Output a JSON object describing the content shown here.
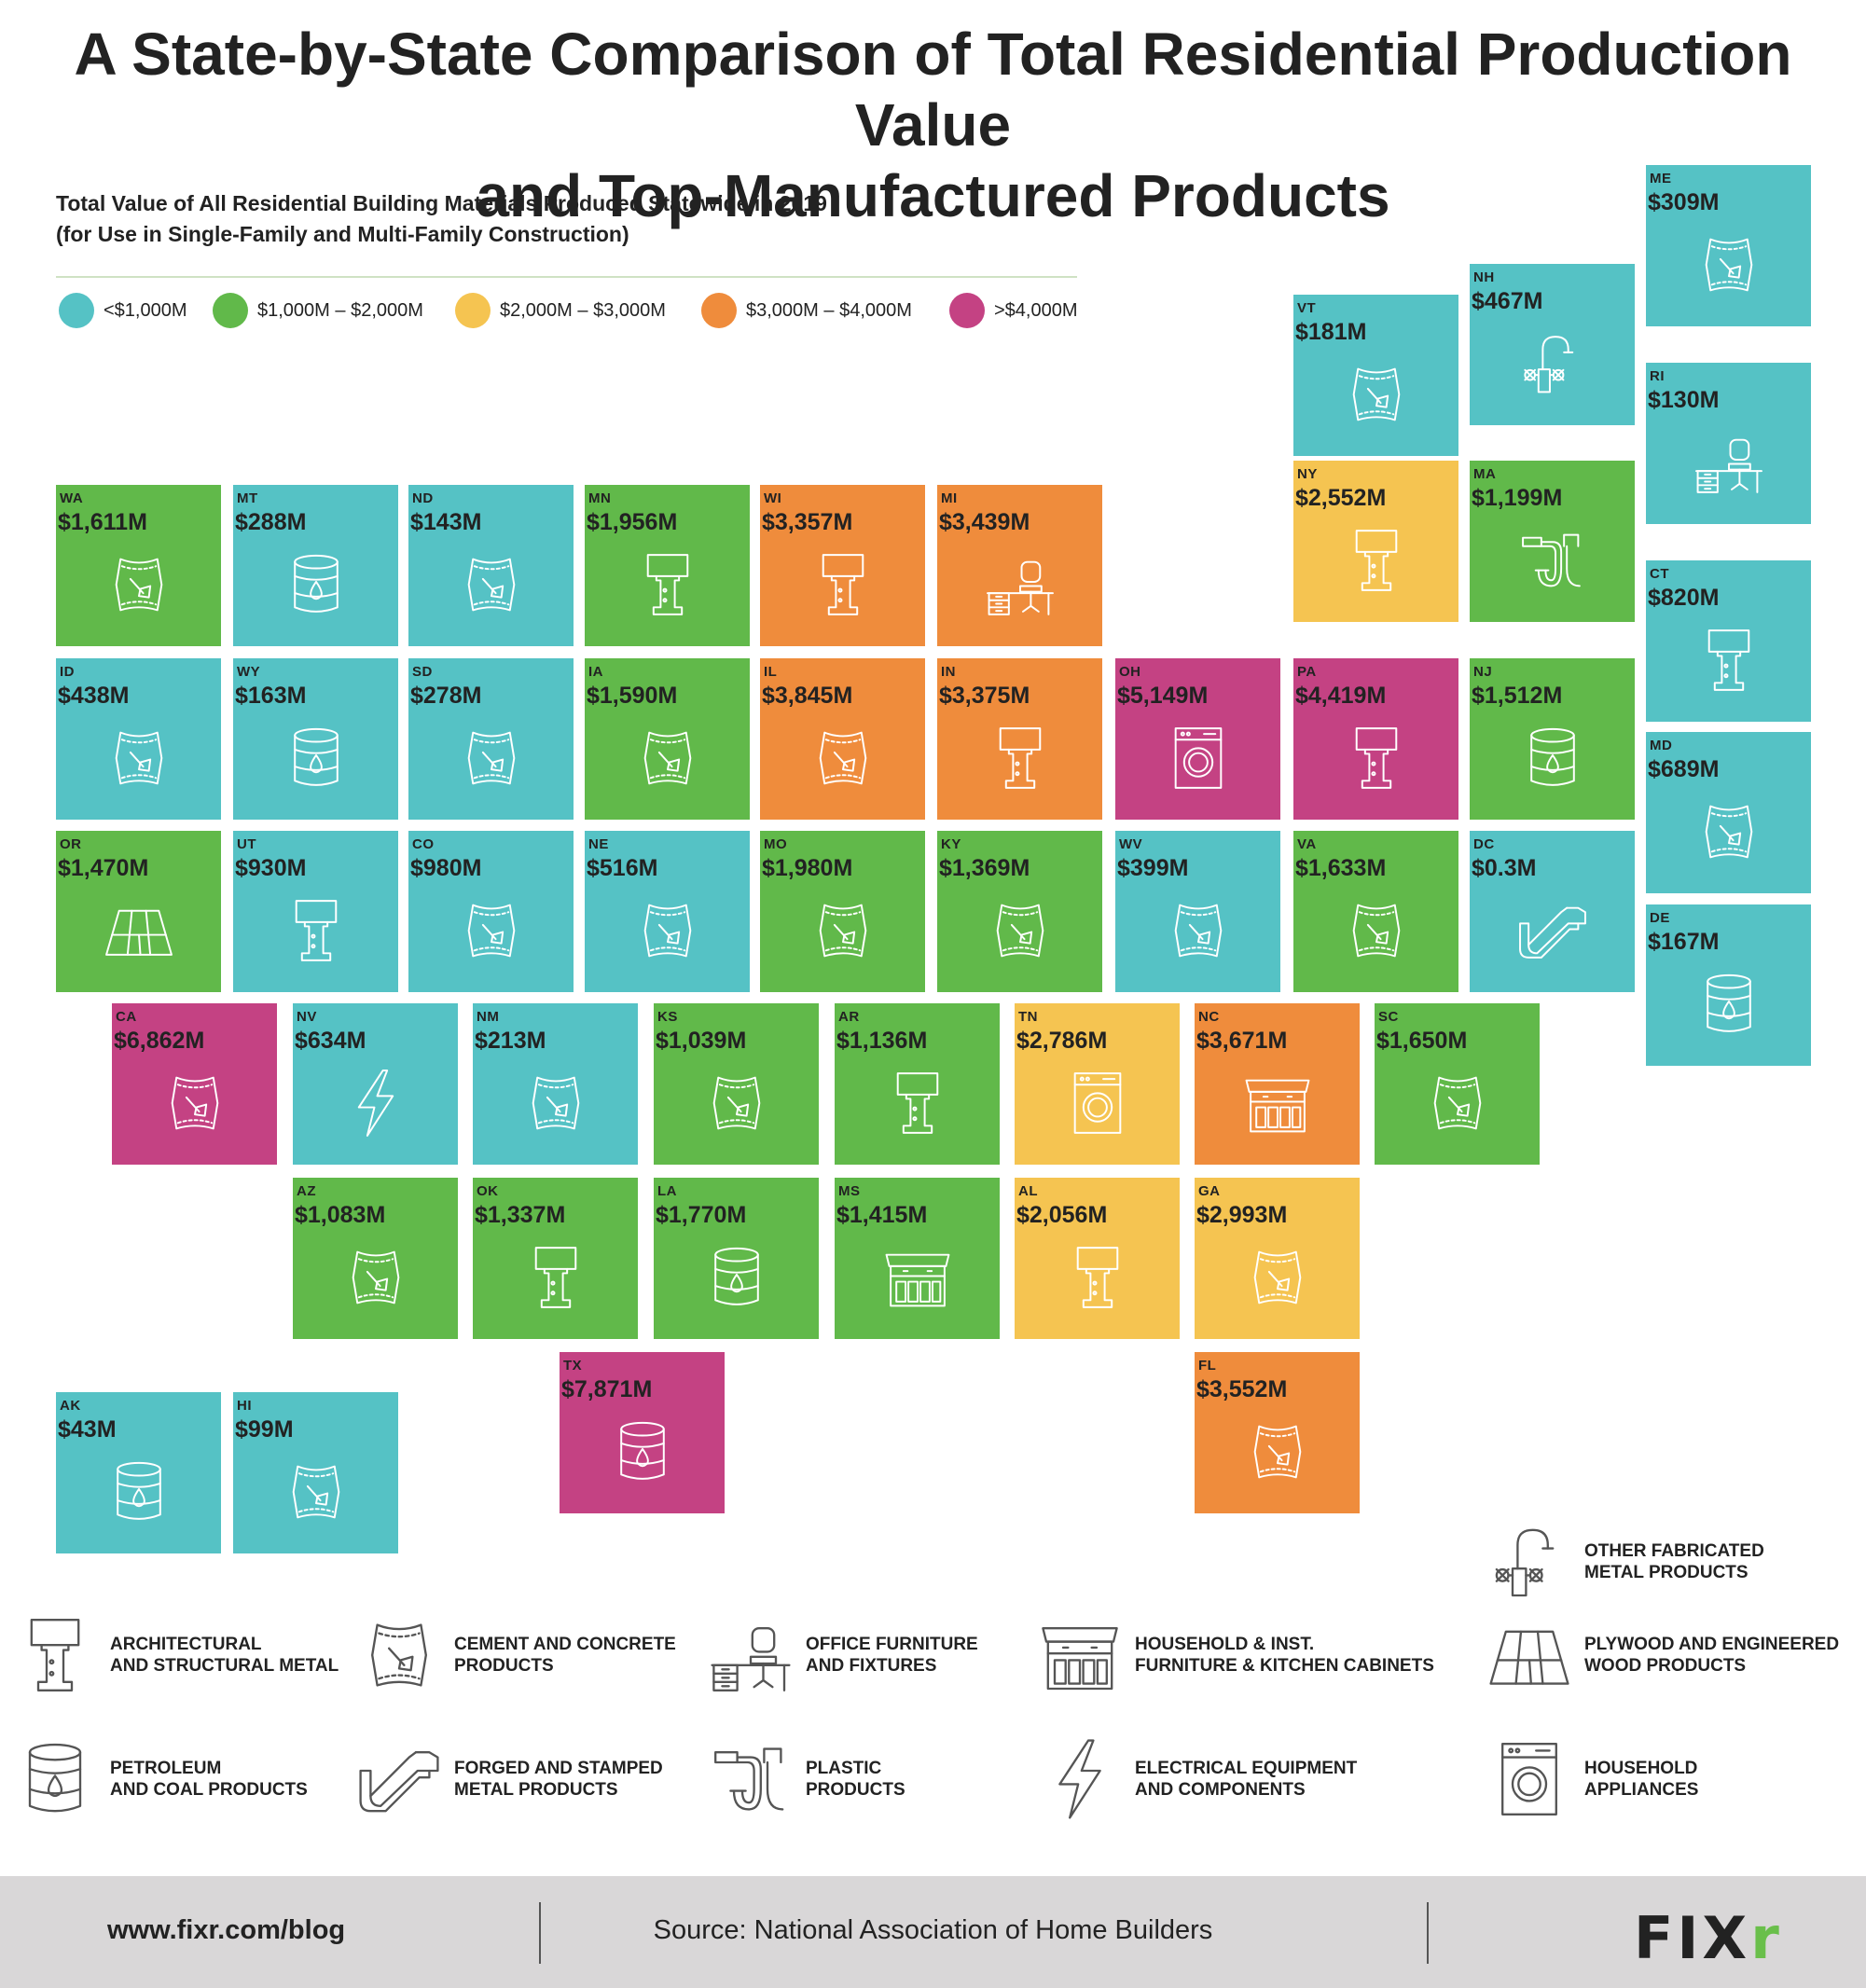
{
  "title": {
    "line1": "A State-by-State Comparison of Total Residential Production Value",
    "line2": "and Top-Manufactured Products"
  },
  "subtitle": {
    "line1": "Total Value of All Residential Building Materials Produced Statewide in 2019",
    "line2": "(for Use in Single-Family and Multi-Family Construction)"
  },
  "legend": [
    {
      "label": "<$1,000M",
      "color": "#55c2c5"
    },
    {
      "label": "$1,000M – $2,000M",
      "color": "#61b94a"
    },
    {
      "label": "$2,000M – $3,000M",
      "color": "#f5c451"
    },
    {
      "label": "$3,000M – $4,000M",
      "color": "#ef8c3c"
    },
    {
      "label": ">$4,000M",
      "color": "#c44283"
    }
  ],
  "states": [
    {
      "abbr": "ME",
      "value": "$309M",
      "value_m": 309,
      "icon": "cement-bag"
    },
    {
      "abbr": "VT",
      "value": "$181M",
      "value_m": 181,
      "icon": "cement-bag"
    },
    {
      "abbr": "NH",
      "value": "$467M",
      "value_m": 467,
      "icon": "faucet"
    },
    {
      "abbr": "RI",
      "value": "$130M",
      "value_m": 130,
      "icon": "office-desk"
    },
    {
      "abbr": "WA",
      "value": "$1,611M",
      "value_m": 1611,
      "icon": "cement-bag"
    },
    {
      "abbr": "MT",
      "value": "$288M",
      "value_m": 288,
      "icon": "oil-barrel"
    },
    {
      "abbr": "ND",
      "value": "$143M",
      "value_m": 143,
      "icon": "cement-bag"
    },
    {
      "abbr": "MN",
      "value": "$1,956M",
      "value_m": 1956,
      "icon": "i-beam"
    },
    {
      "abbr": "WI",
      "value": "$3,357M",
      "value_m": 3357,
      "icon": "i-beam"
    },
    {
      "abbr": "MI",
      "value": "$3,439M",
      "value_m": 3439,
      "icon": "office-desk"
    },
    {
      "abbr": "NY",
      "value": "$2,552M",
      "value_m": 2552,
      "icon": "i-beam"
    },
    {
      "abbr": "MA",
      "value": "$1,199M",
      "value_m": 1199,
      "icon": "pipe"
    },
    {
      "abbr": "CT",
      "value": "$820M",
      "value_m": 820,
      "icon": "i-beam"
    },
    {
      "abbr": "ID",
      "value": "$438M",
      "value_m": 438,
      "icon": "cement-bag"
    },
    {
      "abbr": "WY",
      "value": "$163M",
      "value_m": 163,
      "icon": "oil-barrel"
    },
    {
      "abbr": "SD",
      "value": "$278M",
      "value_m": 278,
      "icon": "cement-bag"
    },
    {
      "abbr": "IA",
      "value": "$1,590M",
      "value_m": 1590,
      "icon": "cement-bag"
    },
    {
      "abbr": "IL",
      "value": "$3,845M",
      "value_m": 3845,
      "icon": "cement-bag"
    },
    {
      "abbr": "IN",
      "value": "$3,375M",
      "value_m": 3375,
      "icon": "i-beam"
    },
    {
      "abbr": "OH",
      "value": "$5,149M",
      "value_m": 5149,
      "icon": "washer"
    },
    {
      "abbr": "PA",
      "value": "$4,419M",
      "value_m": 4419,
      "icon": "i-beam"
    },
    {
      "abbr": "NJ",
      "value": "$1,512M",
      "value_m": 1512,
      "icon": "oil-barrel"
    },
    {
      "abbr": "MD",
      "value": "$689M",
      "value_m": 689,
      "icon": "cement-bag"
    },
    {
      "abbr": "OR",
      "value": "$1,470M",
      "value_m": 1470,
      "icon": "plywood"
    },
    {
      "abbr": "UT",
      "value": "$930M",
      "value_m": 930,
      "icon": "i-beam"
    },
    {
      "abbr": "CO",
      "value": "$980M",
      "value_m": 980,
      "icon": "cement-bag"
    },
    {
      "abbr": "NE",
      "value": "$516M",
      "value_m": 516,
      "icon": "cement-bag"
    },
    {
      "abbr": "MO",
      "value": "$1,980M",
      "value_m": 1980,
      "icon": "cement-bag"
    },
    {
      "abbr": "KY",
      "value": "$1,369M",
      "value_m": 1369,
      "icon": "cement-bag"
    },
    {
      "abbr": "WV",
      "value": "$399M",
      "value_m": 399,
      "icon": "cement-bag"
    },
    {
      "abbr": "VA",
      "value": "$1,633M",
      "value_m": 1633,
      "icon": "cement-bag"
    },
    {
      "abbr": "DC",
      "value": "$0.3M",
      "value_m": 0.3,
      "icon": "channel"
    },
    {
      "abbr": "DE",
      "value": "$167M",
      "value_m": 167,
      "icon": "oil-barrel"
    },
    {
      "abbr": "CA",
      "value": "$6,862M",
      "value_m": 6862,
      "icon": "cement-bag"
    },
    {
      "abbr": "NV",
      "value": "$634M",
      "value_m": 634,
      "icon": "bolt"
    },
    {
      "abbr": "NM",
      "value": "$213M",
      "value_m": 213,
      "icon": "cement-bag"
    },
    {
      "abbr": "KS",
      "value": "$1,039M",
      "value_m": 1039,
      "icon": "cement-bag"
    },
    {
      "abbr": "AR",
      "value": "$1,136M",
      "value_m": 1136,
      "icon": "i-beam"
    },
    {
      "abbr": "TN",
      "value": "$2,786M",
      "value_m": 2786,
      "icon": "washer"
    },
    {
      "abbr": "NC",
      "value": "$3,671M",
      "value_m": 3671,
      "icon": "cabinet"
    },
    {
      "abbr": "SC",
      "value": "$1,650M",
      "value_m": 1650,
      "icon": "cement-bag"
    },
    {
      "abbr": "AZ",
      "value": "$1,083M",
      "value_m": 1083,
      "icon": "cement-bag"
    },
    {
      "abbr": "OK",
      "value": "$1,337M",
      "value_m": 1337,
      "icon": "i-beam"
    },
    {
      "abbr": "LA",
      "value": "$1,770M",
      "value_m": 1770,
      "icon": "oil-barrel"
    },
    {
      "abbr": "MS",
      "value": "$1,415M",
      "value_m": 1415,
      "icon": "cabinet"
    },
    {
      "abbr": "AL",
      "value": "$2,056M",
      "value_m": 2056,
      "icon": "i-beam"
    },
    {
      "abbr": "GA",
      "value": "$2,993M",
      "value_m": 2993,
      "icon": "cement-bag"
    },
    {
      "abbr": "TX",
      "value": "$7,871M",
      "value_m": 7871,
      "icon": "oil-barrel"
    },
    {
      "abbr": "FL",
      "value": "$3,552M",
      "value_m": 3552,
      "icon": "cement-bag"
    },
    {
      "abbr": "AK",
      "value": "$43M",
      "value_m": 43,
      "icon": "oil-barrel"
    },
    {
      "abbr": "HI",
      "value": "$99M",
      "value_m": 99,
      "icon": "cement-bag"
    }
  ],
  "key": [
    {
      "icon": "faucet",
      "line1": "OTHER FABRICATED",
      "line2": "METAL PRODUCTS"
    },
    {
      "icon": "i-beam",
      "line1": "ARCHITECTURAL",
      "line2": "AND STRUCTURAL METAL"
    },
    {
      "icon": "cement-bag",
      "line1": "CEMENT AND CONCRETE",
      "line2": "PRODUCTS"
    },
    {
      "icon": "office-desk",
      "line1": "OFFICE FURNITURE",
      "line2": "AND FIXTURES"
    },
    {
      "icon": "cabinet",
      "line1": "HOUSEHOLD & INST.",
      "line2": "FURNITURE & KITCHEN CABINETS"
    },
    {
      "icon": "plywood",
      "line1": "PLYWOOD AND ENGINEERED",
      "line2": "WOOD PRODUCTS"
    },
    {
      "icon": "oil-barrel",
      "line1": "PETROLEUM",
      "line2": "AND COAL PRODUCTS"
    },
    {
      "icon": "channel",
      "line1": "FORGED AND STAMPED",
      "line2": "METAL PRODUCTS"
    },
    {
      "icon": "pipe",
      "line1": "PLASTIC",
      "line2": "PRODUCTS"
    },
    {
      "icon": "bolt",
      "line1": "ELECTRICAL EQUIPMENT",
      "line2": "AND COMPONENTS"
    },
    {
      "icon": "washer",
      "line1": "HOUSEHOLD",
      "line2": "APPLIANCES"
    }
  ],
  "footer": {
    "url": "www.fixr.com/blog",
    "source": "Source: National Association of Home Builders",
    "logo_main": "FIX",
    "logo_accent": "r"
  },
  "colors": {
    "lt1000": "#55c2c5",
    "1000to2000": "#61b94a",
    "2000to3000": "#f5c451",
    "3000to4000": "#ef8c3c",
    "gt4000": "#c44283"
  }
}
